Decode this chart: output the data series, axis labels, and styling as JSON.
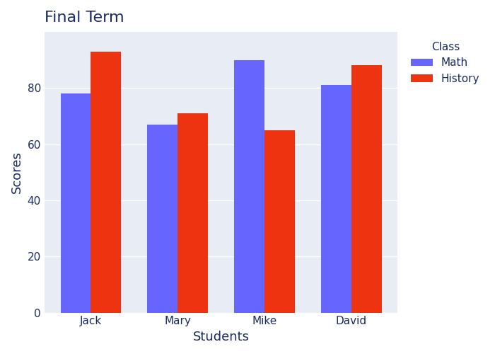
{
  "title": "Final Term",
  "xlabel": "Students",
  "ylabel": "Scores",
  "students": [
    "Jack",
    "Mary",
    "Mike",
    "David"
  ],
  "math_scores": [
    78,
    67,
    90,
    81
  ],
  "history_scores": [
    93,
    71,
    65,
    88
  ],
  "math_color": "#6666ff",
  "history_color": "#ee3311",
  "legend_title": "Class",
  "legend_labels": [
    "Math",
    "History"
  ],
  "plot_bg_color": "#e8edf5",
  "fig_bg_color": "#ffffff",
  "ylim": [
    0,
    100
  ],
  "bar_width": 0.35,
  "title_fontsize": 16,
  "axis_label_fontsize": 13,
  "tick_fontsize": 11,
  "legend_fontsize": 11,
  "title_color": "#1a2a5e",
  "axis_label_color": "#1a2a5e",
  "tick_color": "#1a2a5e",
  "grid_color": "#ffffff",
  "yticks": [
    0,
    20,
    40,
    60,
    80
  ]
}
